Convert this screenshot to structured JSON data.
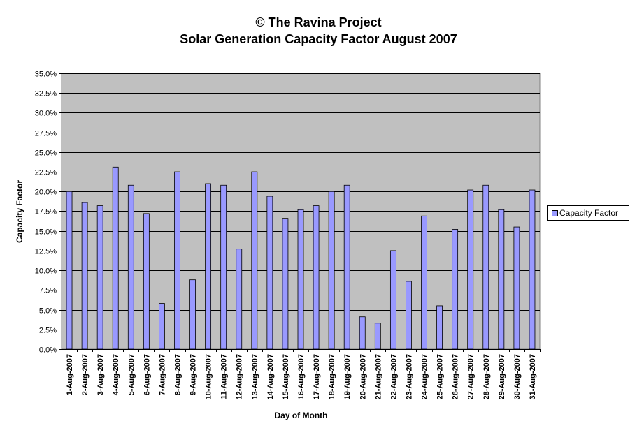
{
  "chart_data": {
    "type": "bar",
    "title": "© The Ravina Project",
    "subtitle": "Solar Generation Capacity Factor August 2007",
    "xlabel": "Day of Month",
    "ylabel": "Capacity Factor",
    "ylim": [
      0,
      0.35
    ],
    "ytick_step": 0.025,
    "ytick_labels": [
      "0.0%",
      "2.5%",
      "5.0%",
      "7.5%",
      "10.0%",
      "12.5%",
      "15.0%",
      "17.5%",
      "20.0%",
      "22.5%",
      "25.0%",
      "27.5%",
      "30.0%",
      "32.5%",
      "35.0%"
    ],
    "grid": true,
    "legend": "right",
    "categories": [
      "1-Aug-2007",
      "2-Aug-2007",
      "3-Aug-2007",
      "4-Aug-2007",
      "5-Aug-2007",
      "6-Aug-2007",
      "7-Aug-2007",
      "8-Aug-2007",
      "9-Aug-2007",
      "10-Aug-2007",
      "11-Aug-2007",
      "12-Aug-2007",
      "13-Aug-2007",
      "14-Aug-2007",
      "15-Aug-2007",
      "16-Aug-2007",
      "17-Aug-2007",
      "18-Aug-2007",
      "19-Aug-2007",
      "20-Aug-2007",
      "21-Aug-2007",
      "22-Aug-2007",
      "23-Aug-2007",
      "24-Aug-2007",
      "25-Aug-2007",
      "26-Aug-2007",
      "27-Aug-2007",
      "28-Aug-2007",
      "29-Aug-2007",
      "30-Aug-2007",
      "31-Aug-2007"
    ],
    "series": [
      {
        "name": "Capacity Factor",
        "color": "#9999ff",
        "values": [
          0.2,
          0.186,
          0.182,
          0.231,
          0.208,
          0.172,
          0.058,
          0.225,
          0.088,
          0.21,
          0.208,
          0.127,
          0.225,
          0.194,
          0.166,
          0.177,
          0.182,
          0.2,
          0.208,
          0.041,
          0.033,
          0.125,
          0.086,
          0.169,
          0.055,
          0.152,
          0.202,
          0.208,
          0.177,
          0.155,
          0.202
        ]
      }
    ],
    "colors": {
      "plot_background": "#c0c0c0",
      "bar": "#9999ff",
      "gridline": "#000000"
    }
  }
}
